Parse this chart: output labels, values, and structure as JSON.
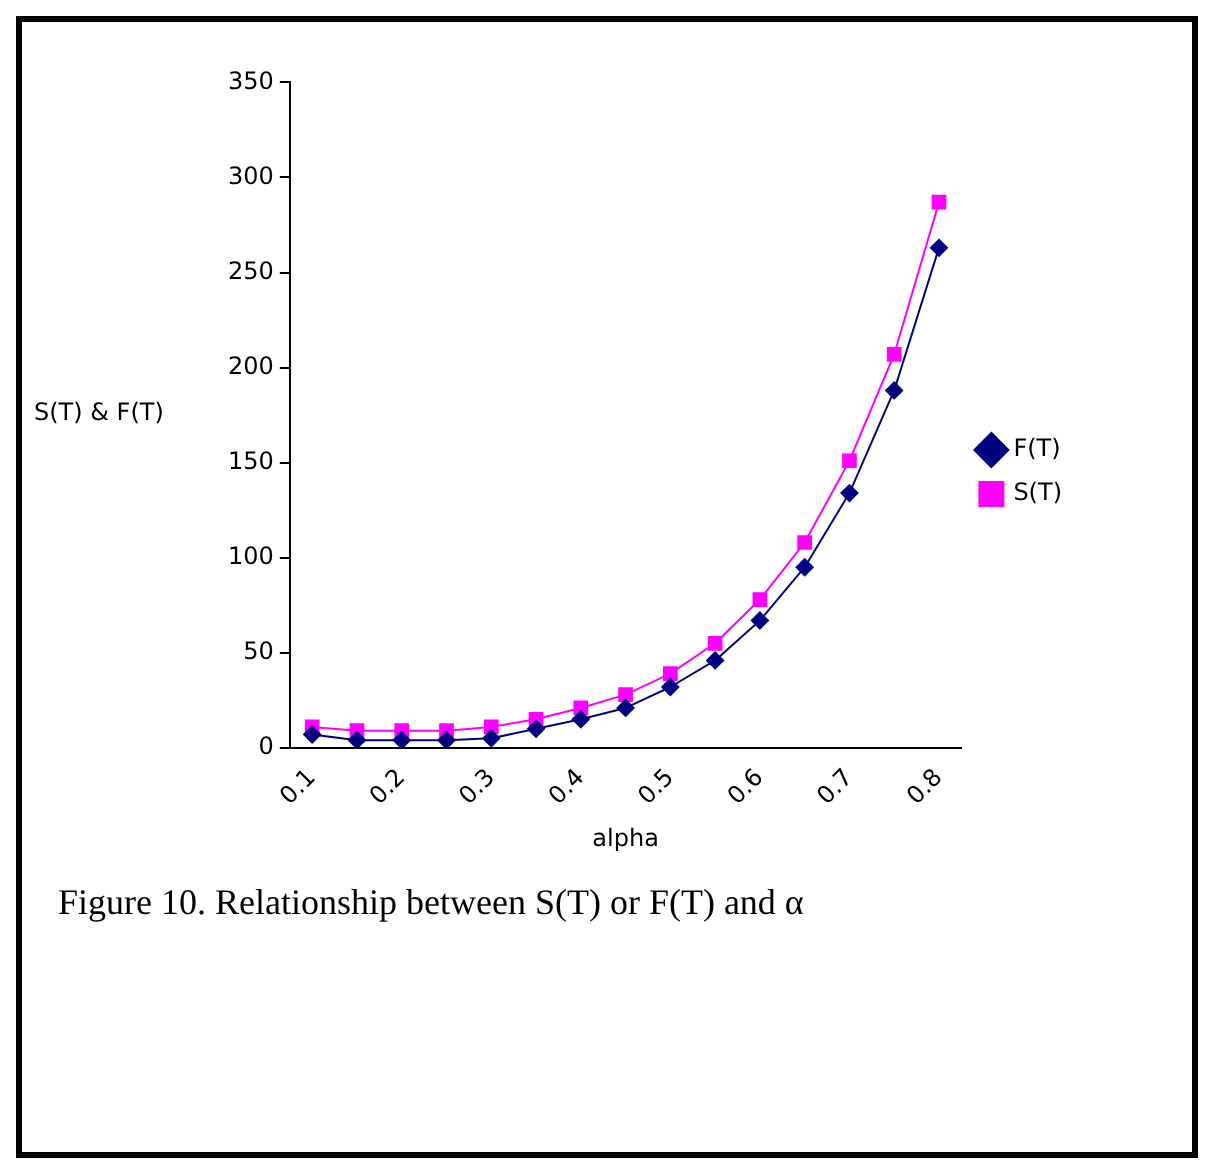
{
  "chart_data": {
    "type": "line",
    "xlabel": "alpha",
    "ylabel": "S(T) & F(T)",
    "categories": [
      "0.1",
      null,
      "0.2",
      null,
      "0.3",
      null,
      "0.4",
      null,
      "0.5",
      null,
      "0.6",
      null,
      "0.7",
      null,
      "0.8"
    ],
    "series": [
      {
        "name": "F(T)",
        "color": "#000080",
        "marker": "diamond",
        "values": [
          7,
          4,
          4,
          4,
          5,
          10,
          15,
          21,
          32,
          46,
          67,
          95,
          134,
          188,
          263
        ]
      },
      {
        "name": "S(T)",
        "color": "#ff00ff",
        "marker": "square",
        "values": [
          11,
          9,
          9,
          9,
          11,
          15,
          21,
          28,
          39,
          55,
          78,
          108,
          151,
          207,
          287
        ]
      }
    ],
    "ylim": [
      0,
      350
    ],
    "yticks": [
      0,
      50,
      100,
      150,
      200,
      250,
      300,
      350
    ],
    "grid": false,
    "legend": "right",
    "annotations": [
      "Figure 10. Relationship between S(T) or F(T) and α"
    ]
  }
}
